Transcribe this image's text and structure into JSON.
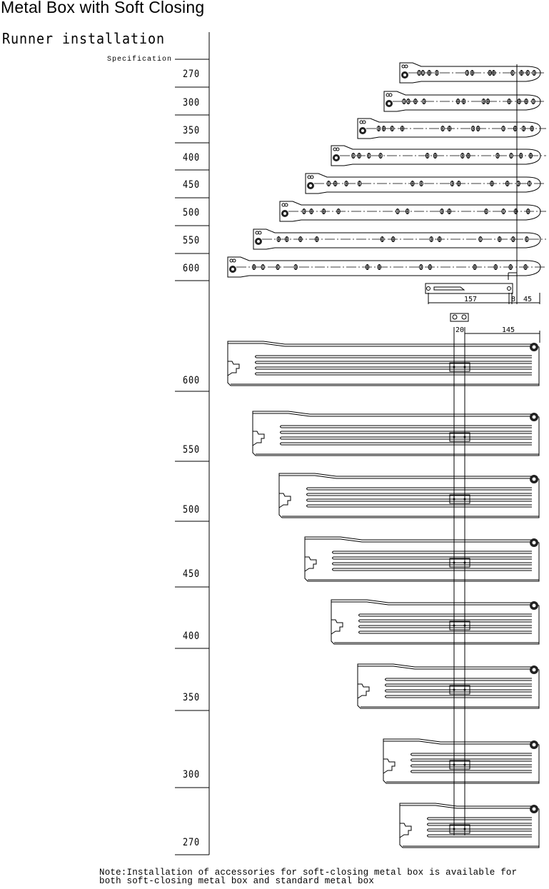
{
  "title": "Metal Box with Soft Closing",
  "heading": "Runner installation",
  "spec_label": "Specification",
  "runner_specs": [
    "270",
    "300",
    "350",
    "400",
    "450",
    "500",
    "550",
    "600"
  ],
  "drawer_specs": [
    "600",
    "550",
    "500",
    "450",
    "400",
    "350",
    "300",
    "270"
  ],
  "dimensions": {
    "runner_mount": "157",
    "gap": "8",
    "offset": "45",
    "pitch": "20",
    "front": "145"
  },
  "note": {
    "line1": "Note:Installation of accessories for soft-closing metal box is available for",
    "line2": "both soft-closing metal box and standard metal box"
  }
}
